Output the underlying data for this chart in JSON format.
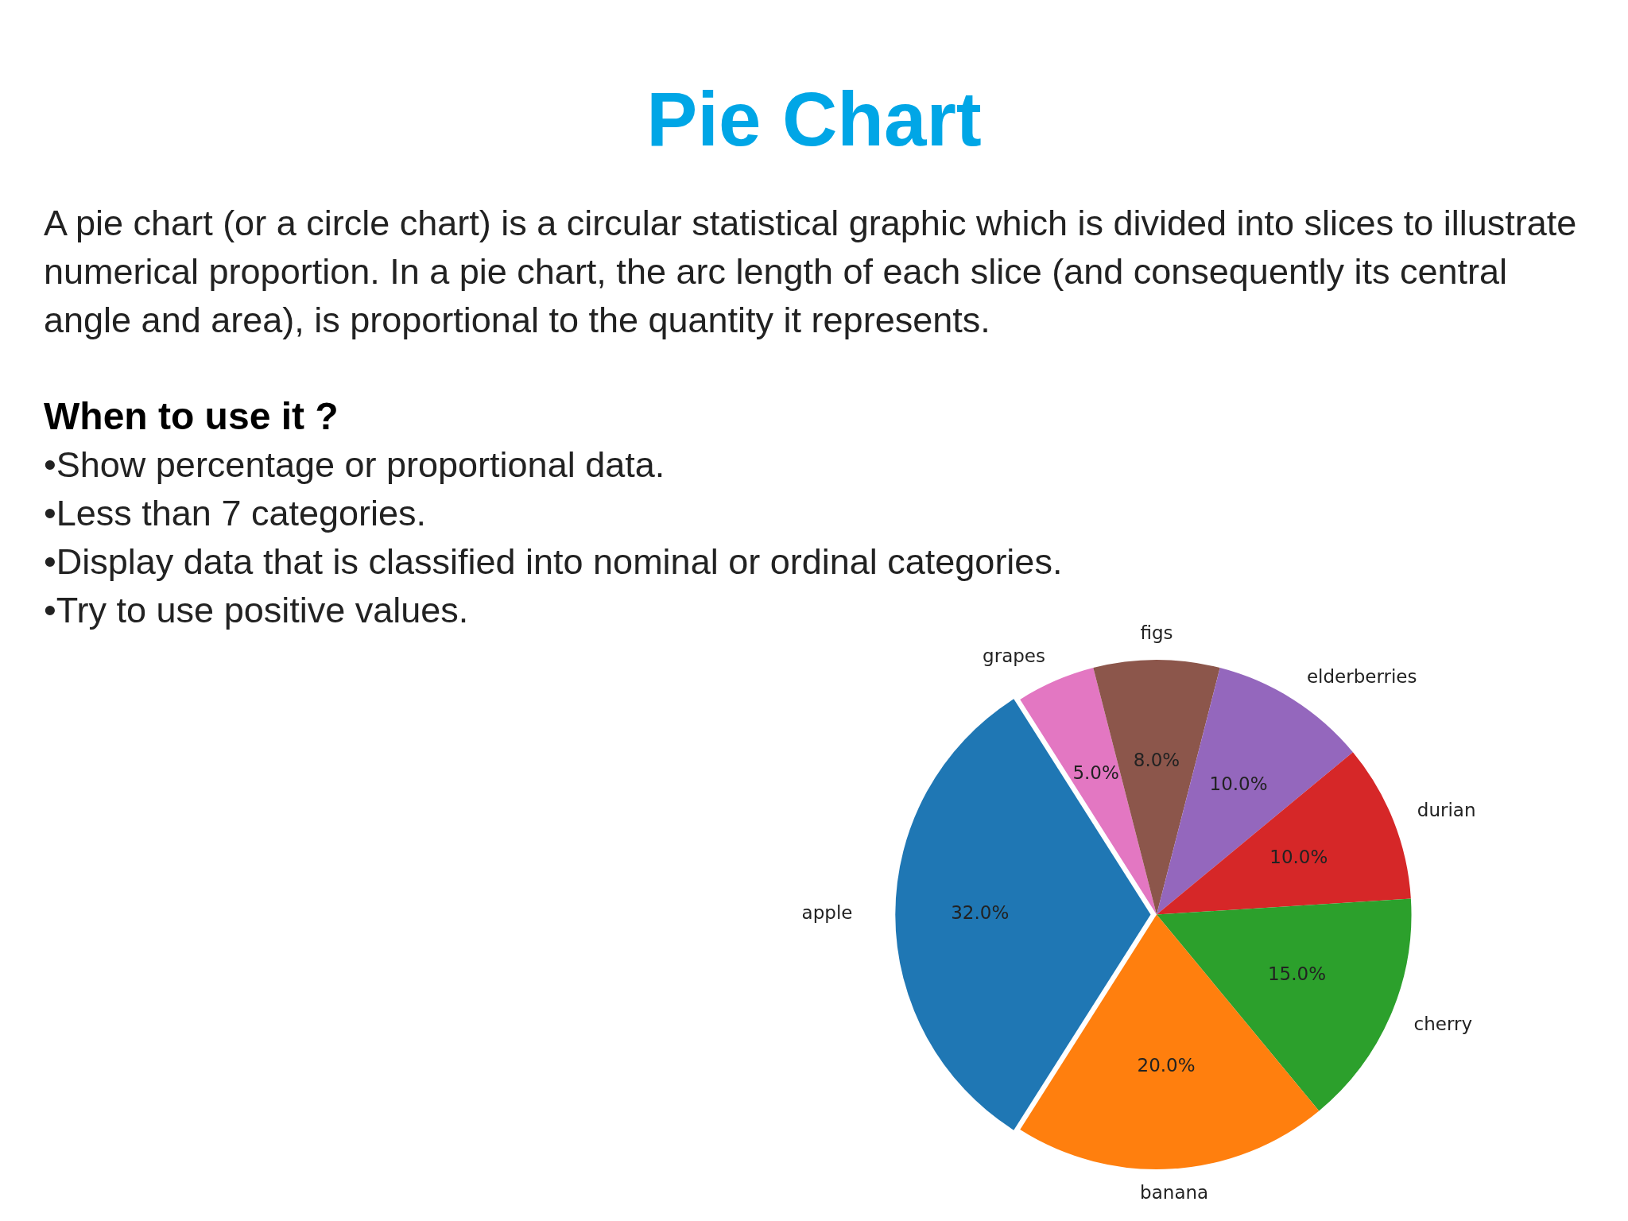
{
  "chart_data": {
    "type": "pie",
    "title": "Pie Chart",
    "annotations": [
      "A pie chart (or a circle chart) is a circular statistical graphic which is divided into slices to illustrate numerical proportion. In a pie chart, the arc length of each slice (and consequently its central angle and area), is proportional to the quantity it represents.",
      "When to use it ?",
      "•Show percentage or proportional data.",
      "•Less than 7 categories.",
      "•Display data that is classified into nominal or ordinal categories.",
      "•Try to use positive values."
    ],
    "categories": [
      "apple",
      "banana",
      "cherry",
      "durian",
      "elderberries",
      "figs",
      "grapes"
    ],
    "values": [
      32,
      20,
      15,
      10,
      10,
      8,
      5
    ],
    "value_labels": [
      "32.0%",
      "20.0%",
      "15.0%",
      "10.0%",
      "10.0%",
      "8.0%",
      "5.0%"
    ],
    "colors": [
      "#1f77b4",
      "#ff7f0e",
      "#2ca02c",
      "#d62728",
      "#9467bd",
      "#8c564b",
      "#e377c2"
    ]
  }
}
